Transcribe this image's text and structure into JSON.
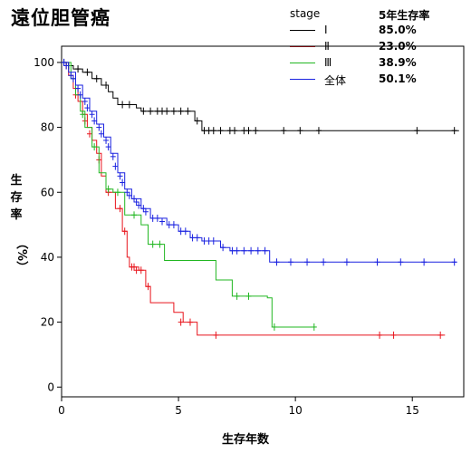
{
  "chart_data": {
    "type": "line",
    "title": "遠位胆管癌",
    "xlabel": "生存年数",
    "ylabel": "生存率",
    "ylabel_unit": "（%）",
    "xlim": [
      0,
      17.2
    ],
    "ylim": [
      -3,
      105
    ],
    "xticks": [
      0,
      5,
      10,
      15
    ],
    "yticks": [
      0,
      20,
      40,
      60,
      80,
      100
    ],
    "grid": false,
    "legend": {
      "placement": "top-right",
      "header_left": "stage",
      "header_right": "5年生存率"
    },
    "series": [
      {
        "name": "Ⅰ",
        "rate": "85.0%",
        "color": "#000000",
        "steps": [
          [
            0,
            100
          ],
          [
            0.2,
            99
          ],
          [
            0.5,
            98
          ],
          [
            0.9,
            97
          ],
          [
            1.3,
            95
          ],
          [
            1.7,
            93
          ],
          [
            2.0,
            91
          ],
          [
            2.2,
            89
          ],
          [
            2.4,
            87
          ],
          [
            3.2,
            86
          ],
          [
            3.4,
            85
          ],
          [
            5.7,
            82
          ],
          [
            6.0,
            79
          ],
          [
            17.0,
            79
          ]
        ],
        "censors": [
          [
            0.1,
            100
          ],
          [
            0.3,
            99
          ],
          [
            0.7,
            98
          ],
          [
            1.1,
            97
          ],
          [
            1.5,
            95
          ],
          [
            1.9,
            93
          ],
          [
            2.6,
            87
          ],
          [
            2.9,
            87
          ],
          [
            3.5,
            85
          ],
          [
            3.8,
            85
          ],
          [
            4.1,
            85
          ],
          [
            4.3,
            85
          ],
          [
            4.5,
            85
          ],
          [
            4.8,
            85
          ],
          [
            5.1,
            85
          ],
          [
            5.4,
            85
          ],
          [
            5.8,
            82
          ],
          [
            6.1,
            79
          ],
          [
            6.3,
            79
          ],
          [
            6.5,
            79
          ],
          [
            6.8,
            79
          ],
          [
            7.2,
            79
          ],
          [
            7.4,
            79
          ],
          [
            7.8,
            79
          ],
          [
            8.0,
            79
          ],
          [
            8.3,
            79
          ],
          [
            9.5,
            79
          ],
          [
            10.2,
            79
          ],
          [
            11.0,
            79
          ],
          [
            15.2,
            79
          ],
          [
            16.8,
            79
          ]
        ]
      },
      {
        "name": "Ⅱ",
        "rate": "23.0%",
        "color": "#e8141c",
        "steps": [
          [
            0,
            100
          ],
          [
            0.3,
            96
          ],
          [
            0.5,
            92
          ],
          [
            0.7,
            88
          ],
          [
            0.9,
            84
          ],
          [
            1.1,
            80
          ],
          [
            1.3,
            76
          ],
          [
            1.5,
            72
          ],
          [
            1.7,
            65
          ],
          [
            1.9,
            60
          ],
          [
            2.3,
            55
          ],
          [
            2.6,
            48
          ],
          [
            2.8,
            40
          ],
          [
            2.9,
            37
          ],
          [
            3.3,
            36
          ],
          [
            3.6,
            31
          ],
          [
            3.8,
            26
          ],
          [
            4.8,
            23
          ],
          [
            5.2,
            20
          ],
          [
            5.8,
            16
          ],
          [
            16.4,
            16
          ]
        ],
        "censors": [
          [
            0.2,
            99
          ],
          [
            0.6,
            90
          ],
          [
            1.0,
            82
          ],
          [
            1.2,
            78
          ],
          [
            1.6,
            70
          ],
          [
            2.0,
            60
          ],
          [
            2.5,
            55
          ],
          [
            2.7,
            48
          ],
          [
            3.0,
            37
          ],
          [
            3.1,
            37
          ],
          [
            3.2,
            36
          ],
          [
            3.4,
            36
          ],
          [
            3.7,
            31
          ],
          [
            5.1,
            20
          ],
          [
            5.5,
            20
          ],
          [
            6.6,
            16
          ],
          [
            13.6,
            16
          ],
          [
            14.2,
            16
          ],
          [
            16.2,
            16
          ]
        ]
      },
      {
        "name": "Ⅲ",
        "rate": "38.9%",
        "color": "#22b722",
        "steps": [
          [
            0,
            100
          ],
          [
            0.4,
            95
          ],
          [
            0.6,
            90
          ],
          [
            0.8,
            85
          ],
          [
            1.0,
            80
          ],
          [
            1.3,
            74
          ],
          [
            1.6,
            66
          ],
          [
            1.9,
            61
          ],
          [
            2.2,
            60
          ],
          [
            2.7,
            53
          ],
          [
            3.4,
            50
          ],
          [
            3.7,
            44
          ],
          [
            4.4,
            39
          ],
          [
            6.6,
            33
          ],
          [
            7.3,
            28
          ],
          [
            8.8,
            27.5
          ],
          [
            9.0,
            18.5
          ],
          [
            10.8,
            18.5
          ]
        ],
        "censors": [
          [
            0.3,
            99
          ],
          [
            0.9,
            84
          ],
          [
            1.4,
            74
          ],
          [
            2.0,
            61
          ],
          [
            2.4,
            60
          ],
          [
            3.1,
            53
          ],
          [
            3.9,
            44
          ],
          [
            4.2,
            44
          ],
          [
            7.5,
            28
          ],
          [
            8.0,
            28
          ],
          [
            9.1,
            18.5
          ],
          [
            10.8,
            18.5
          ]
        ]
      },
      {
        "name": "全体",
        "rate": "50.1%",
        "color": "#1a22e0",
        "steps": [
          [
            0,
            100
          ],
          [
            0.3,
            97
          ],
          [
            0.6,
            93
          ],
          [
            0.9,
            89
          ],
          [
            1.2,
            85
          ],
          [
            1.5,
            81
          ],
          [
            1.8,
            77
          ],
          [
            2.1,
            72
          ],
          [
            2.4,
            66
          ],
          [
            2.7,
            61
          ],
          [
            3.0,
            58
          ],
          [
            3.4,
            55
          ],
          [
            3.8,
            52
          ],
          [
            4.5,
            50
          ],
          [
            5.0,
            48
          ],
          [
            5.5,
            46
          ],
          [
            6.0,
            45
          ],
          [
            6.8,
            43
          ],
          [
            7.2,
            42
          ],
          [
            8.9,
            38.5
          ],
          [
            16.9,
            38.5
          ]
        ],
        "censors": [
          [
            0.1,
            100
          ],
          [
            0.2,
            99
          ],
          [
            0.4,
            96
          ],
          [
            0.5,
            95
          ],
          [
            0.7,
            92
          ],
          [
            0.8,
            90
          ],
          [
            1.0,
            88
          ],
          [
            1.1,
            86
          ],
          [
            1.3,
            84
          ],
          [
            1.4,
            82
          ],
          [
            1.6,
            80
          ],
          [
            1.7,
            78
          ],
          [
            1.9,
            76
          ],
          [
            2.0,
            74
          ],
          [
            2.2,
            71
          ],
          [
            2.3,
            68
          ],
          [
            2.5,
            65
          ],
          [
            2.6,
            63
          ],
          [
            2.8,
            60
          ],
          [
            2.9,
            59
          ],
          [
            3.1,
            58
          ],
          [
            3.2,
            57
          ],
          [
            3.3,
            56
          ],
          [
            3.5,
            55
          ],
          [
            3.6,
            54
          ],
          [
            3.9,
            52
          ],
          [
            4.1,
            52
          ],
          [
            4.3,
            51
          ],
          [
            4.6,
            50
          ],
          [
            4.8,
            50
          ],
          [
            5.1,
            48
          ],
          [
            5.3,
            48
          ],
          [
            5.6,
            46
          ],
          [
            5.8,
            46
          ],
          [
            6.1,
            45
          ],
          [
            6.3,
            45
          ],
          [
            6.5,
            45
          ],
          [
            6.9,
            43
          ],
          [
            7.3,
            42
          ],
          [
            7.5,
            42
          ],
          [
            7.8,
            42
          ],
          [
            8.1,
            42
          ],
          [
            8.4,
            42
          ],
          [
            8.7,
            42
          ],
          [
            9.2,
            38.5
          ],
          [
            9.8,
            38.5
          ],
          [
            10.5,
            38.5
          ],
          [
            11.2,
            38.5
          ],
          [
            12.2,
            38.5
          ],
          [
            13.5,
            38.5
          ],
          [
            14.5,
            38.5
          ],
          [
            15.5,
            38.5
          ],
          [
            16.8,
            38.5
          ]
        ]
      }
    ]
  }
}
